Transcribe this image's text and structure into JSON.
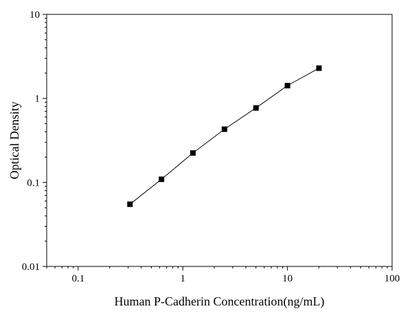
{
  "chart_data": {
    "type": "scatter",
    "title": "",
    "xlabel": "Human P-Cadherin Concentration(ng/mL)",
    "ylabel": "Optical Density",
    "x_scale": "log",
    "y_scale": "log",
    "xlim": [
      0.05,
      100
    ],
    "ylim": [
      0.01,
      10
    ],
    "x_ticks": [
      {
        "value": 0.1,
        "label": "0.1"
      },
      {
        "value": 1,
        "label": "1"
      },
      {
        "value": 10,
        "label": "10"
      },
      {
        "value": 100,
        "label": "100"
      }
    ],
    "y_ticks": [
      {
        "value": 0.01,
        "label": "0.01"
      },
      {
        "value": 0.1,
        "label": "0.1"
      },
      {
        "value": 1,
        "label": "1"
      },
      {
        "value": 10,
        "label": "10"
      }
    ],
    "grid": false,
    "legend": "none",
    "series": [
      {
        "marker": "square",
        "fit_line": true,
        "color": "#000000",
        "points": [
          {
            "x": 0.3125,
            "y": 0.055
          },
          {
            "x": 0.625,
            "y": 0.109
          },
          {
            "x": 1.25,
            "y": 0.224
          },
          {
            "x": 2.5,
            "y": 0.43
          },
          {
            "x": 5,
            "y": 0.77
          },
          {
            "x": 10,
            "y": 1.42
          },
          {
            "x": 20,
            "y": 2.29
          }
        ]
      }
    ]
  }
}
